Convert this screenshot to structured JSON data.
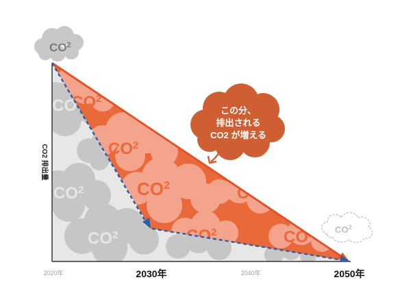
{
  "diagram": {
    "y_axis_label": "CO2 排出量",
    "co2_label": "CO",
    "co2_sub": "2",
    "future_co2_label": "CO",
    "future_co2_sub": "2",
    "callout_lines": [
      "この分、",
      "排出される",
      "CO2 が増える"
    ],
    "x_ticks": [
      {
        "label": "2020年",
        "emphasis": false
      },
      {
        "label": "2030年",
        "emphasis": true
      },
      {
        "label": "2040年",
        "emphasis": false
      },
      {
        "label": "2050年",
        "emphasis": true
      }
    ],
    "colors": {
      "orange_line": "#e0532a",
      "orange_fill": "#e9693b",
      "orange_cloud": "#f4a48c",
      "blue_line": "#2f5ea8",
      "gray_fill": "#e7e7e5",
      "gray_cloud": "#c6c6c6",
      "gray_text": "#9e9e9e",
      "callout_bg": "#cf5f32"
    }
  }
}
